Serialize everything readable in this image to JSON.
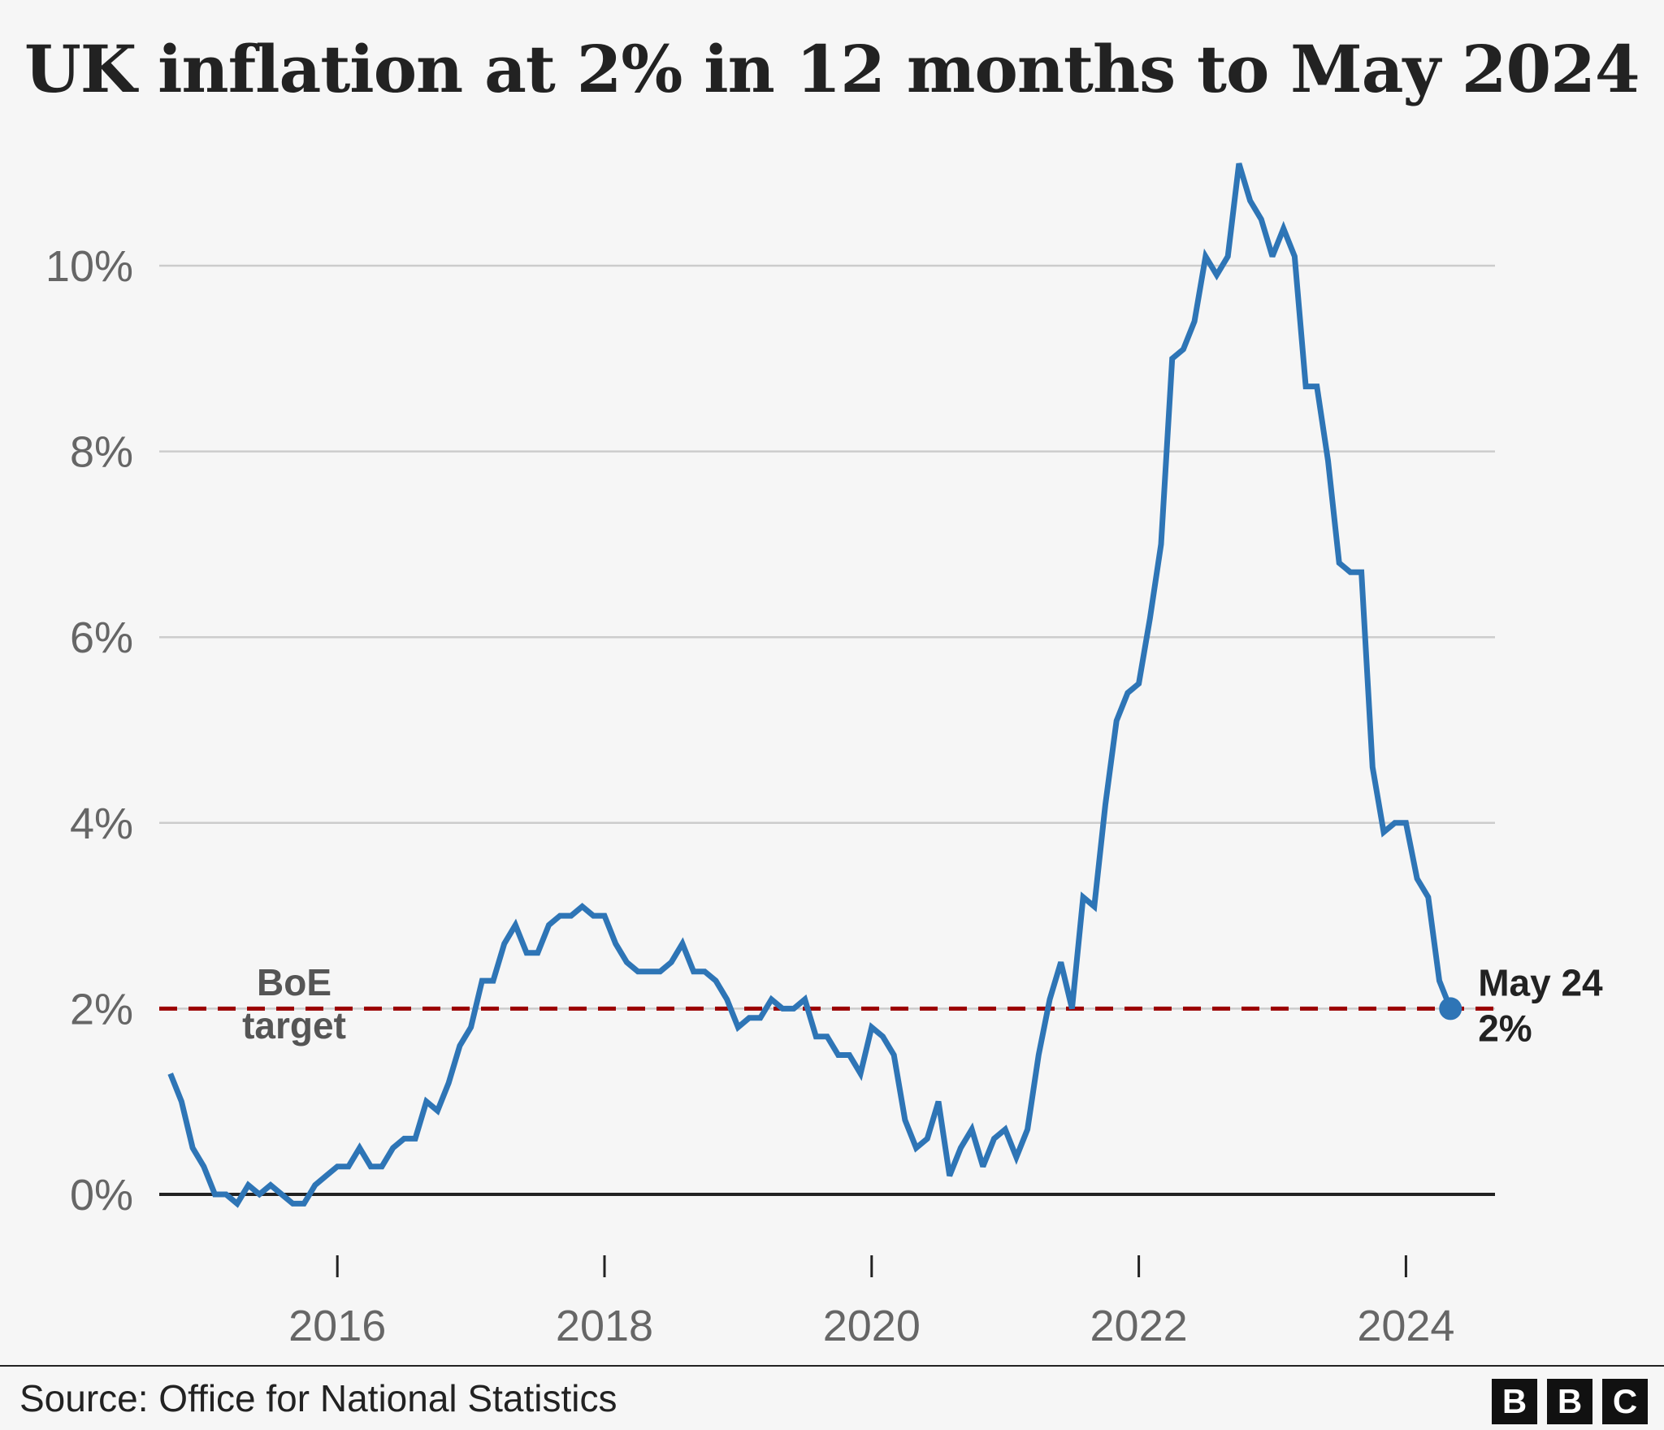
{
  "colors": {
    "background": "#f6f6f6",
    "line": "#2e75b6",
    "target": "#9b0000",
    "grid": "#cccccc",
    "baseline": "#222222"
  },
  "footer": {
    "source": "Source: Office for National Statistics",
    "logo_letters": [
      "B",
      "B",
      "C"
    ]
  },
  "chart_data": {
    "type": "line",
    "title": "UK inflation at 2% in 12 months to May 2024",
    "xlabel": "",
    "ylabel": "",
    "ylim": [
      -0.6,
      11.2
    ],
    "xlim": [
      "2014-09",
      "2024-09"
    ],
    "grid": true,
    "y_ticks": [
      0,
      2,
      4,
      6,
      8,
      10
    ],
    "y_tick_labels": [
      "0%",
      "2%",
      "4%",
      "6%",
      "8%",
      "10%"
    ],
    "x_ticks": [
      "2016-01",
      "2018-01",
      "2020-01",
      "2022-01",
      "2024-01"
    ],
    "x_tick_labels": [
      "2016",
      "2018",
      "2020",
      "2022",
      "2024"
    ],
    "reference_line": {
      "value": 2,
      "label_line1": "BoE",
      "label_line2": "target",
      "style": "dashed"
    },
    "end_annotation": {
      "label_line1": "May 24",
      "label_line2": "2%"
    },
    "series": [
      {
        "start": "2014-10",
        "frequency": "monthly",
        "values": [
          1.3,
          1.0,
          0.5,
          0.3,
          0.0,
          0.0,
          -0.1,
          0.1,
          0.0,
          0.1,
          0.0,
          -0.1,
          -0.1,
          0.1,
          0.2,
          0.3,
          0.3,
          0.5,
          0.3,
          0.3,
          0.5,
          0.6,
          0.6,
          1.0,
          0.9,
          1.2,
          1.6,
          1.8,
          2.3,
          2.3,
          2.7,
          2.9,
          2.6,
          2.6,
          2.9,
          3.0,
          3.0,
          3.1,
          3.0,
          3.0,
          2.7,
          2.5,
          2.4,
          2.4,
          2.4,
          2.5,
          2.7,
          2.4,
          2.4,
          2.3,
          2.1,
          1.8,
          1.9,
          1.9,
          2.1,
          2.0,
          2.0,
          2.1,
          1.7,
          1.7,
          1.5,
          1.5,
          1.3,
          1.8,
          1.7,
          1.5,
          0.8,
          0.5,
          0.6,
          1.0,
          0.2,
          0.5,
          0.7,
          0.3,
          0.6,
          0.7,
          0.4,
          0.7,
          1.5,
          2.1,
          2.5,
          2.0,
          3.2,
          3.1,
          4.2,
          5.1,
          5.4,
          5.5,
          6.2,
          7.0,
          9.0,
          9.1,
          9.4,
          10.1,
          9.9,
          10.1,
          11.1,
          10.7,
          10.5,
          10.1,
          10.4,
          10.1,
          8.7,
          8.7,
          7.9,
          6.8,
          6.7,
          6.7,
          4.6,
          3.9,
          4.0,
          4.0,
          3.4,
          3.2,
          2.3,
          2.0
        ]
      }
    ]
  }
}
